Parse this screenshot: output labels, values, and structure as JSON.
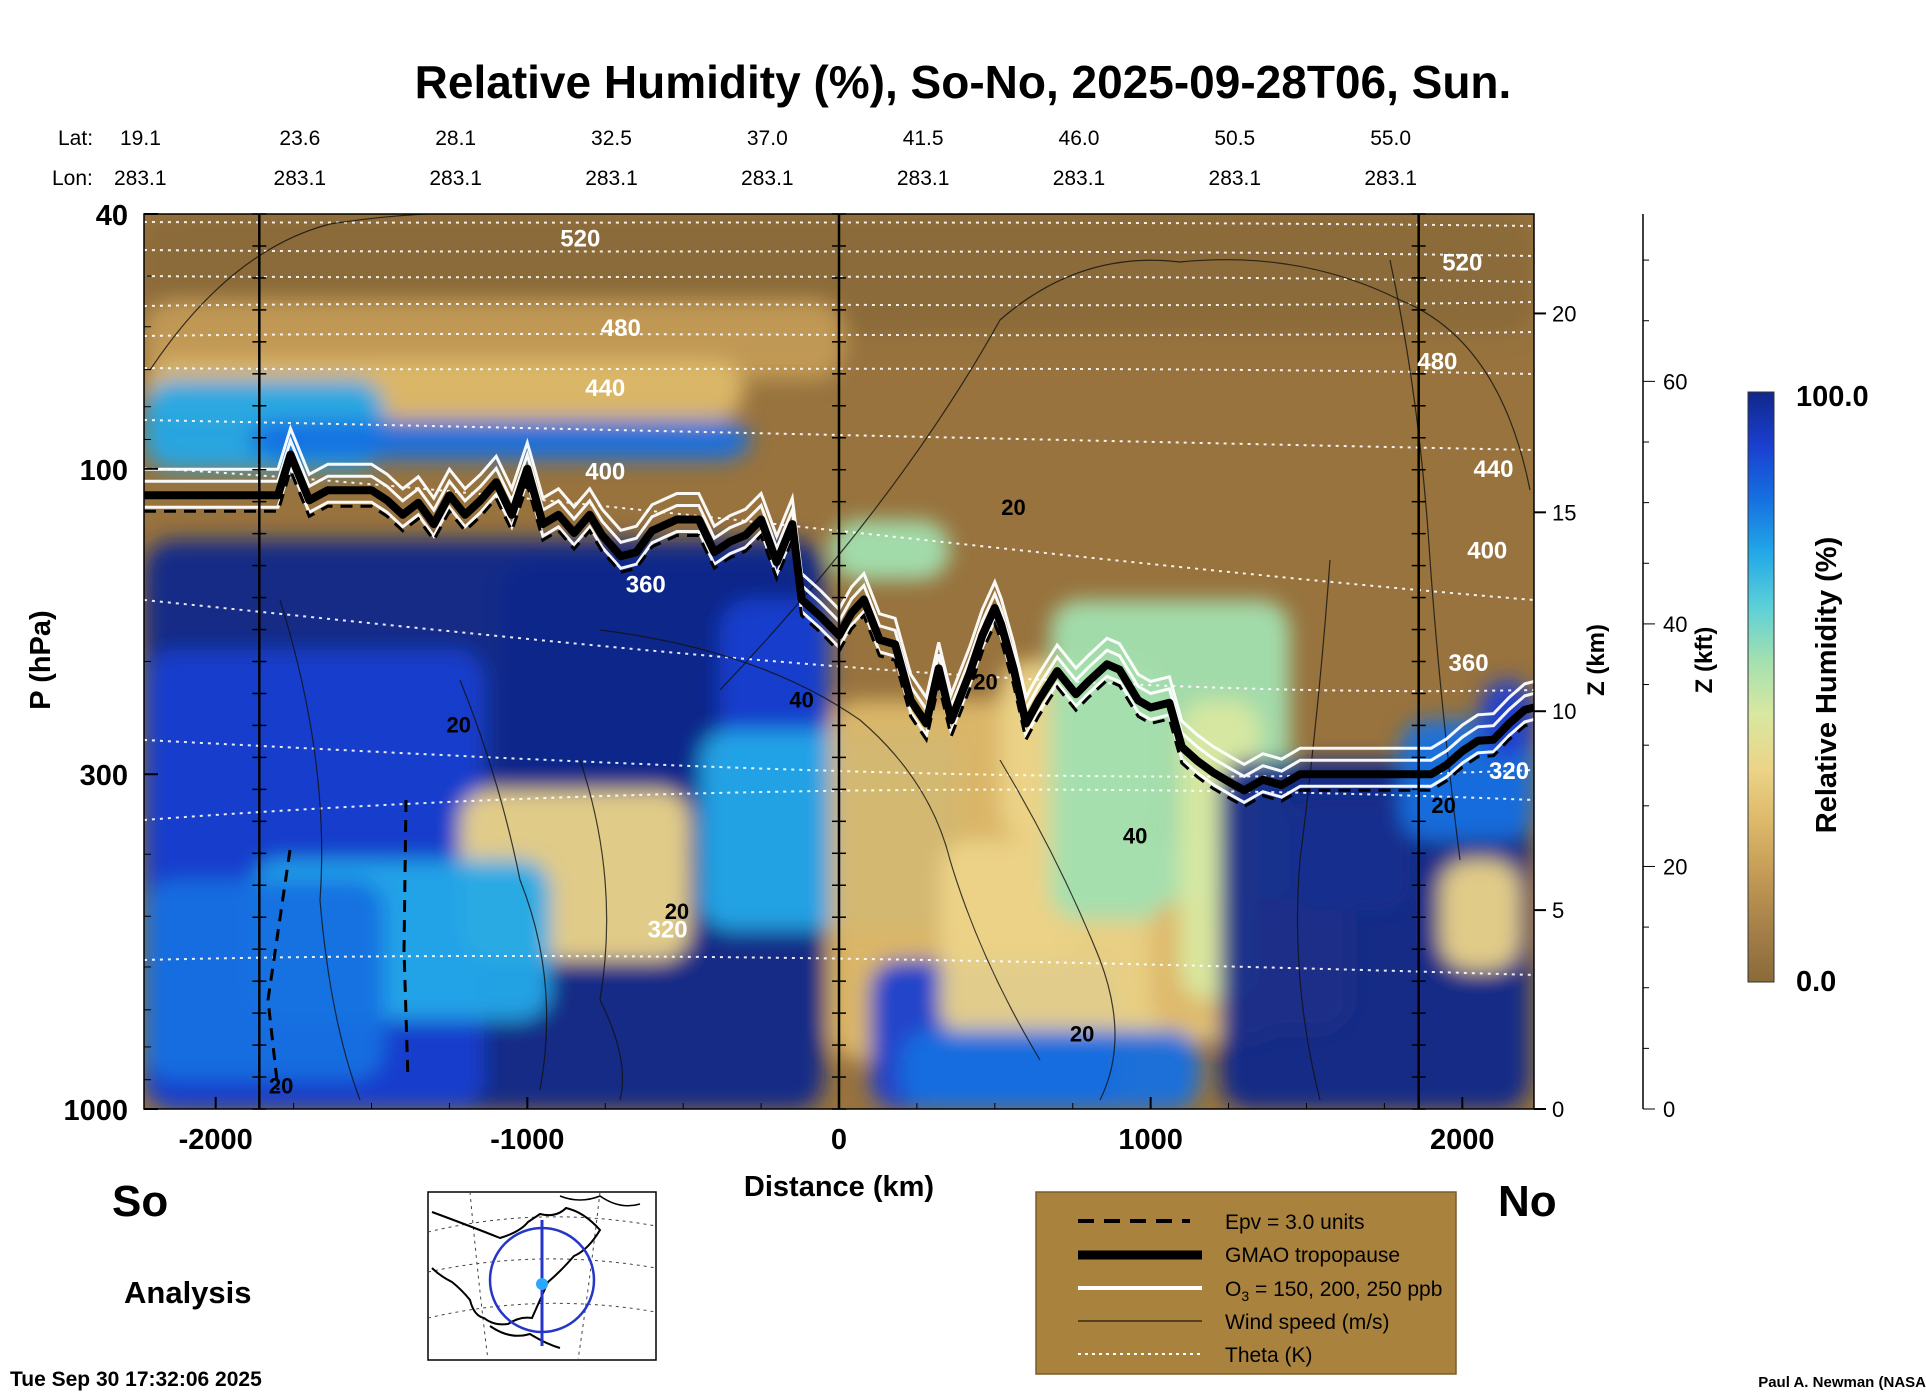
{
  "chart_data": {
    "type": "heatmap",
    "title": "Relative Humidity (%), So-No, 2025-09-28T06, Sun.",
    "xlabel": "Distance (km)",
    "ylabel": "P (hPa)",
    "z_km_label": "Z (km)",
    "z_kft_label": "Z (kft)",
    "xlim": [
      -2230,
      2230
    ],
    "ylim": [
      1000,
      40
    ],
    "y_scale": "log",
    "x_ticks": [
      -2000,
      -1000,
      0,
      1000,
      2000
    ],
    "y_ticks": [
      40,
      100,
      300,
      1000
    ],
    "z_km_ticks": [
      0,
      5,
      10,
      15,
      20
    ],
    "z_kft_ticks": [
      0,
      20,
      40,
      60
    ],
    "lat_label": "Lat:",
    "lon_label": "Lon:",
    "lat_values": [
      "19.1",
      "23.6",
      "28.1",
      "32.5",
      "37.0",
      "41.5",
      "46.0",
      "50.5",
      "55.0"
    ],
    "lon_values": [
      "283.1",
      "283.1",
      "283.1",
      "283.1",
      "283.1",
      "283.1",
      "283.1",
      "283.1",
      "283.1"
    ],
    "coord_x": [
      -2230,
      -1730,
      -1230,
      -730,
      -230,
      270,
      770,
      1270,
      1770
    ],
    "vertical_markers_x": [
      -1860,
      0,
      1860
    ],
    "end_left": "So",
    "end_right": "No",
    "colorbar": {
      "title": "Relative Humidity (%)",
      "min_label": "0.0",
      "max_label": "100.0",
      "colors": [
        "#8a6a3a",
        "#a58048",
        "#c39b56",
        "#ddb96a",
        "#ecd488",
        "#d8e8a0",
        "#a2e0b0",
        "#5cd0d8",
        "#22a8e8",
        "#1670e0",
        "#1a3fd0",
        "#10278a"
      ]
    },
    "theta_labels": [
      {
        "value": "520",
        "x": -830,
        "p": 45
      },
      {
        "value": "480",
        "x": -700,
        "p": 62
      },
      {
        "value": "440",
        "x": -750,
        "p": 77
      },
      {
        "value": "400",
        "x": -750,
        "p": 104
      },
      {
        "value": "360",
        "x": -620,
        "p": 156
      },
      {
        "value": "320",
        "x": -550,
        "p": 540
      },
      {
        "value": "520",
        "x": 2000,
        "p": 49
      },
      {
        "value": "480",
        "x": 1920,
        "p": 70
      },
      {
        "value": "440",
        "x": 2100,
        "p": 103
      },
      {
        "value": "400",
        "x": 2080,
        "p": 138
      },
      {
        "value": "360",
        "x": 2020,
        "p": 207
      },
      {
        "value": "320",
        "x": 2150,
        "p": 305
      }
    ],
    "wind_labels": [
      {
        "value": "20",
        "x": 560,
        "p": 118
      },
      {
        "value": "40",
        "x": -120,
        "p": 236
      },
      {
        "value": "20",
        "x": -1220,
        "p": 258
      },
      {
        "value": "20",
        "x": 470,
        "p": 221
      },
      {
        "value": "40",
        "x": 950,
        "p": 385
      },
      {
        "value": "20",
        "x": -520,
        "p": 505
      },
      {
        "value": "20",
        "x": 780,
        "p": 785
      },
      {
        "value": "20",
        "x": 1940,
        "p": 345
      },
      {
        "value": "20",
        "x": -1790,
        "p": 945
      }
    ],
    "tropopause": {
      "x": [
        -2230,
        -1950,
        -1800,
        -1760,
        -1700,
        -1640,
        -1500,
        -1450,
        -1400,
        -1350,
        -1300,
        -1250,
        -1200,
        -1150,
        -1100,
        -1050,
        -1000,
        -950,
        -900,
        -850,
        -800,
        -760,
        -700,
        -650,
        -600,
        -520,
        -450,
        -400,
        -350,
        -300,
        -250,
        -200,
        -150,
        -120,
        -60,
        0,
        40,
        80,
        130,
        180,
        230,
        280,
        320,
        360,
        420,
        460,
        500,
        520,
        560,
        600,
        640,
        700,
        760,
        800,
        860,
        900,
        960,
        1000,
        1060,
        1100,
        1150,
        1200,
        1260,
        1300,
        1360,
        1420,
        1480,
        1540,
        1600,
        1700,
        1800,
        1900,
        1950,
        2000,
        2050,
        2100,
        2150,
        2200,
        2230
      ],
      "p": [
        110,
        110,
        110,
        95,
        112,
        108,
        108,
        112,
        118,
        113,
        122,
        110,
        118,
        112,
        105,
        118,
        100,
        122,
        118,
        126,
        118,
        127,
        137,
        135,
        125,
        120,
        120,
        135,
        130,
        127,
        120,
        140,
        122,
        160,
        170,
        182,
        168,
        160,
        185,
        188,
        230,
        250,
        205,
        247,
        208,
        182,
        165,
        175,
        205,
        250,
        230,
        207,
        225,
        215,
        202,
        206,
        230,
        236,
        232,
        272,
        286,
        298,
        310,
        318,
        306,
        312,
        300,
        300,
        300,
        300,
        300,
        300,
        290,
        276,
        266,
        265,
        250,
        238,
        236
      ]
    },
    "legend": {
      "epv": "Epv = 3.0 units",
      "tropopause": "GMAO tropopause",
      "ozone_prefix": "O",
      "ozone_sub": "3",
      "ozone_suffix": " = 150, 200, 250 ppb",
      "wind": "Wind speed (m/s)",
      "theta": "Theta (K)"
    }
  },
  "analysis_label": "Analysis",
  "timestamp": "Tue Sep 30 17:32:06 2025",
  "credit": "Paul A. Newman (NASA"
}
